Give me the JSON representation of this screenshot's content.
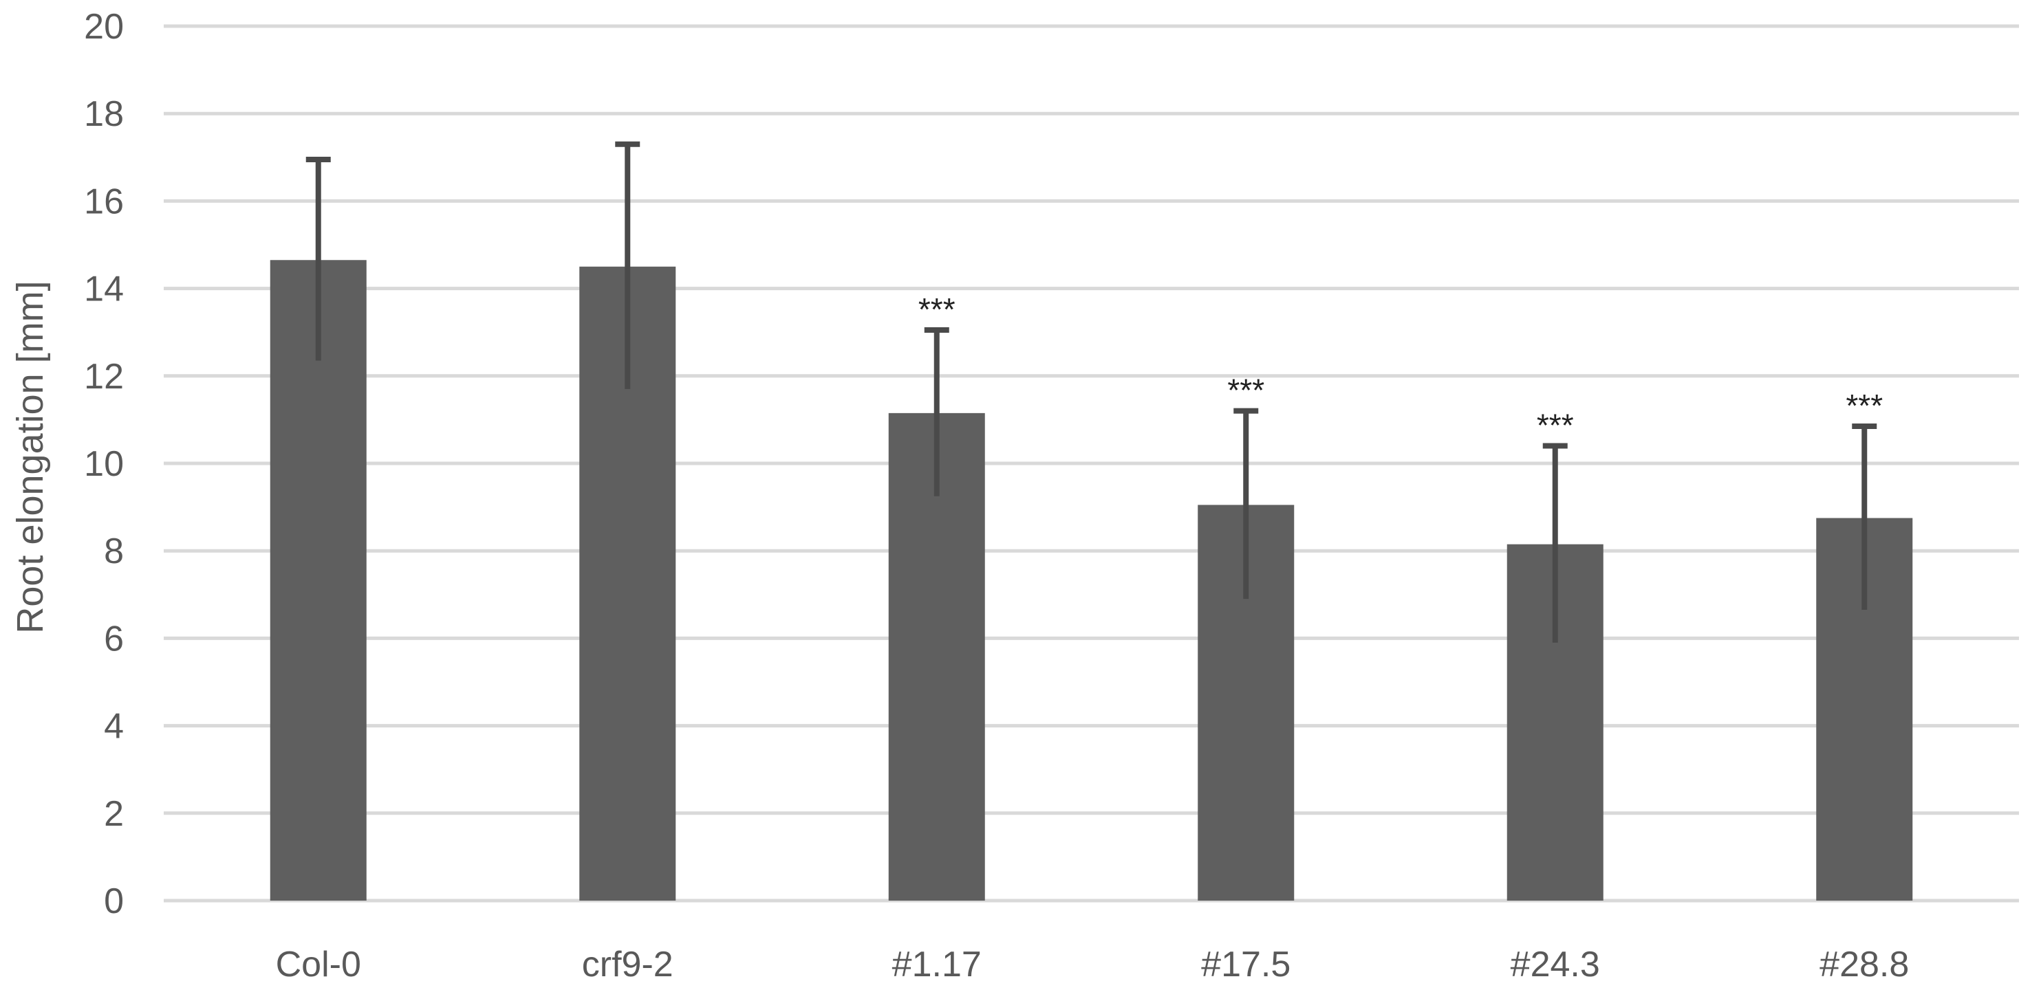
{
  "chart_data": {
    "type": "bar",
    "title": "",
    "xlabel": "",
    "ylabel": "Root elongation [mm]",
    "ylim": [
      0,
      20
    ],
    "yticks": [
      0,
      2,
      4,
      6,
      8,
      10,
      12,
      14,
      16,
      18,
      20
    ],
    "grid": true,
    "legend": "none",
    "bar_color": "#5f5f5f",
    "categories": [
      "Col-0",
      "crf9-2",
      "#1.17",
      "#17.5",
      "#24.3",
      "#28.8"
    ],
    "values": [
      14.65,
      14.5,
      11.15,
      9.05,
      8.15,
      8.75
    ],
    "error": [
      2.3,
      2.8,
      1.9,
      2.15,
      2.25,
      2.1
    ],
    "annotations": [
      "",
      "",
      "***",
      "***",
      "***",
      "***"
    ]
  }
}
